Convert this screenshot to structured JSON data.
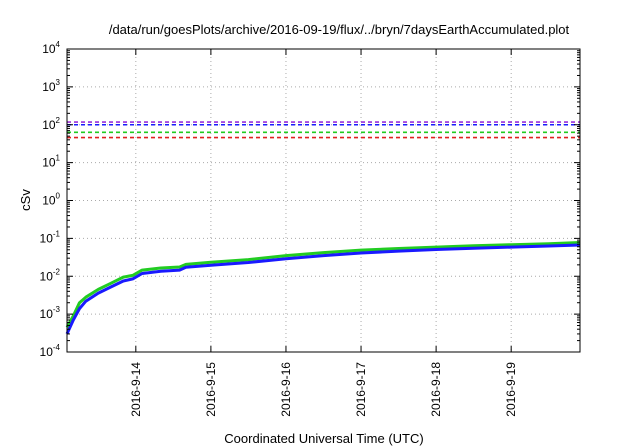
{
  "chart_data": {
    "type": "line",
    "title": "/data/run/goesPlots/archive/2016-09-19/flux/../bryn/7daysEarthAccumulated.plot",
    "xlabel": "Coordinated Universal Time (UTC)",
    "ylabel": "cSv",
    "x_range": [
      "2016-09-13T02:00",
      "2016-09-19T22:00"
    ],
    "ylim": [
      0.0001,
      10000
    ],
    "yscale": "log",
    "grid": true,
    "legend": "none",
    "x_ticks": [
      {
        "label": "2016-9-14",
        "at": "2016-09-14T00:00"
      },
      {
        "label": "2016-9-15",
        "at": "2016-09-15T00:00"
      },
      {
        "label": "2016-9-16",
        "at": "2016-09-16T00:00"
      },
      {
        "label": "2016-9-17",
        "at": "2016-09-17T00:00"
      },
      {
        "label": "2016-9-18",
        "at": "2016-09-18T00:00"
      },
      {
        "label": "2016-9-19",
        "at": "2016-09-19T00:00"
      }
    ],
    "y_ticks": [
      {
        "base": "10",
        "exp": "-4",
        "value": 0.0001
      },
      {
        "base": "10",
        "exp": "-3",
        "value": 0.001
      },
      {
        "base": "10",
        "exp": "-2",
        "value": 0.01
      },
      {
        "base": "10",
        "exp": "-1",
        "value": 0.1
      },
      {
        "base": "10",
        "exp": "0",
        "value": 1
      },
      {
        "base": "10",
        "exp": "1",
        "value": 10
      },
      {
        "base": "10",
        "exp": "2",
        "value": 100
      },
      {
        "base": "10",
        "exp": "3",
        "value": 1000
      },
      {
        "base": "10",
        "exp": "4",
        "value": 10000
      }
    ],
    "reference_lines": [
      {
        "value": 118,
        "color": "#9b30d9"
      },
      {
        "value": 100,
        "color": "#1a1aff"
      },
      {
        "value": 63,
        "color": "#22cc22"
      },
      {
        "value": 46,
        "color": "#e02020"
      }
    ],
    "series": [
      {
        "color": "#22cc22",
        "x": [
          "2016-09-13T02:00",
          "2016-09-13T04:00",
          "2016-09-13T06:00",
          "2016-09-13T08:00",
          "2016-09-13T12:00",
          "2016-09-13T16:00",
          "2016-09-13T20:00",
          "2016-09-13T23:00",
          "2016-09-14T02:00",
          "2016-09-14T08:00",
          "2016-09-14T14:00",
          "2016-09-14T16:00",
          "2016-09-15T00:00",
          "2016-09-15T12:00",
          "2016-09-16T00:00",
          "2016-09-16T12:00",
          "2016-09-17T00:00",
          "2016-09-17T12:00",
          "2016-09-18T00:00",
          "2016-09-18T12:00",
          "2016-09-19T00:00",
          "2016-09-19T12:00",
          "2016-09-19T22:00"
        ],
        "y": [
          0.00045,
          0.0009,
          0.002,
          0.0028,
          0.0045,
          0.0065,
          0.0095,
          0.0105,
          0.0145,
          0.0165,
          0.0175,
          0.0205,
          0.0235,
          0.0275,
          0.035,
          0.042,
          0.049,
          0.054,
          0.059,
          0.064,
          0.068,
          0.072,
          0.078
        ]
      },
      {
        "color": "#1a1aff",
        "x": [
          "2016-09-13T02:00",
          "2016-09-13T04:00",
          "2016-09-13T06:00",
          "2016-09-13T08:00",
          "2016-09-13T12:00",
          "2016-09-13T16:00",
          "2016-09-13T20:00",
          "2016-09-13T23:00",
          "2016-09-14T02:00",
          "2016-09-14T08:00",
          "2016-09-14T14:00",
          "2016-09-14T16:00",
          "2016-09-15T00:00",
          "2016-09-15T12:00",
          "2016-09-16T00:00",
          "2016-09-16T12:00",
          "2016-09-17T00:00",
          "2016-09-17T12:00",
          "2016-09-18T00:00",
          "2016-09-18T12:00",
          "2016-09-19T00:00",
          "2016-09-19T12:00",
          "2016-09-19T22:00"
        ],
        "y": [
          0.0003,
          0.0007,
          0.0014,
          0.0022,
          0.0036,
          0.0052,
          0.0075,
          0.0085,
          0.0118,
          0.0135,
          0.0145,
          0.0172,
          0.0195,
          0.023,
          0.029,
          0.035,
          0.041,
          0.046,
          0.051,
          0.055,
          0.059,
          0.063,
          0.067
        ]
      }
    ]
  }
}
